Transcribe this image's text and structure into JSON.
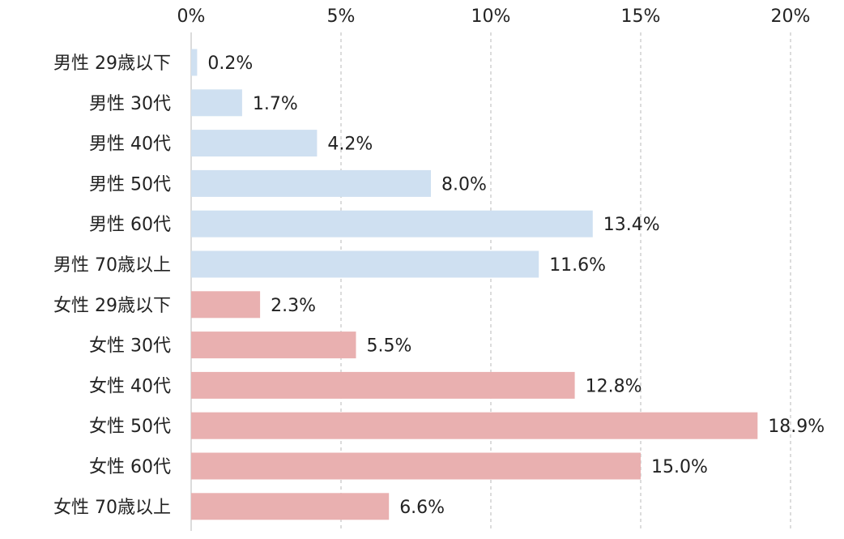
{
  "chart_data": {
    "type": "bar",
    "orientation": "horizontal",
    "title": "",
    "xlabel": "",
    "ylabel": "",
    "xlim": [
      0,
      20
    ],
    "x_ticks": [
      0,
      5,
      10,
      15,
      20
    ],
    "tick_labels": [
      "0%",
      "5%",
      "10%",
      "15%",
      "20%"
    ],
    "grid": true,
    "categories": [
      "男性 29歳以下",
      "男性 30代",
      "男性 40代",
      "男性 50代",
      "男性 60代",
      "男性 70歳以上",
      "女性 29歳以下",
      "女性 30代",
      "女性 40代",
      "女性 50代",
      "女性 60代",
      "女性 70歳以上"
    ],
    "values": [
      0.2,
      1.7,
      4.2,
      8.0,
      13.4,
      11.6,
      2.3,
      5.5,
      12.8,
      18.9,
      15.0,
      6.6
    ],
    "value_labels": [
      "0.2%",
      "1.7%",
      "4.2%",
      "8.0%",
      "13.4%",
      "11.6%",
      "2.3%",
      "5.5%",
      "12.8%",
      "18.9%",
      "15.0%",
      "6.6%"
    ],
    "groups": [
      {
        "name": "男性",
        "color": "#cfe0f1",
        "count": 6
      },
      {
        "name": "女性",
        "color": "#e9b0b0",
        "count": 6
      }
    ]
  }
}
